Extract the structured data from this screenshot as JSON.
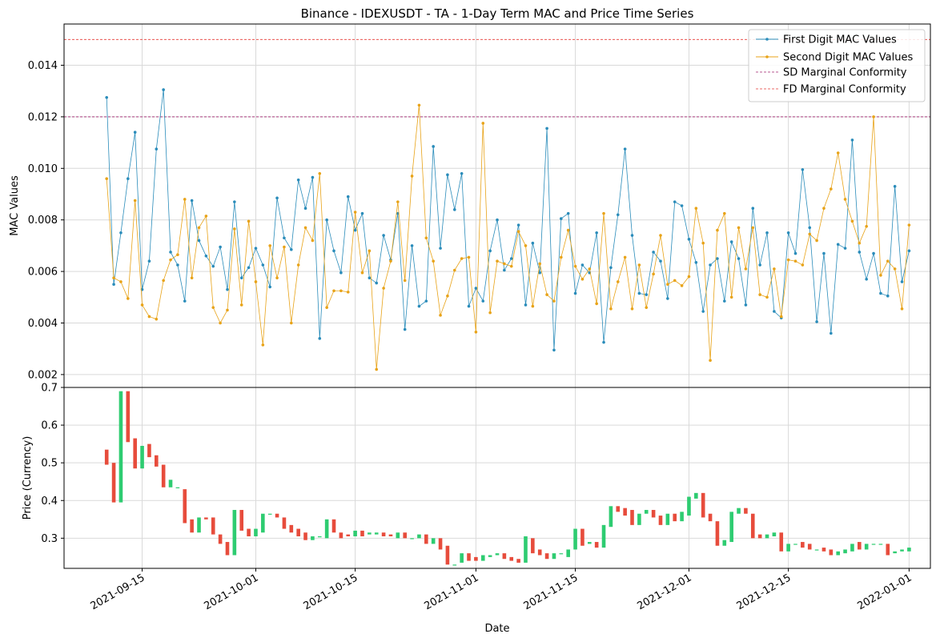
{
  "chart_data": [
    {
      "type": "line",
      "title": "Binance - IDEXUSDT - TA - 1-Day Term MAC and Price Time Series",
      "xlabel": "",
      "ylabel": "MAC Values",
      "x_start": "2021-09-10",
      "x_step_days": 1,
      "xlim": [
        "2021-09-04",
        "2022-01-04"
      ],
      "ylim": [
        0.0015,
        0.0156
      ],
      "yticks": [
        "0.002",
        "0.004",
        "0.006",
        "0.008",
        "0.010",
        "0.012",
        "0.014"
      ],
      "grid": true,
      "legend_position": "top-right",
      "series": [
        {
          "name": "First Digit MAC Values",
          "color": "#2a8cba",
          "values": [
            0.01275,
            0.0055,
            0.0075,
            0.0096,
            0.0114,
            0.0053,
            0.0064,
            0.01075,
            0.01305,
            0.00675,
            0.00625,
            0.00485,
            0.00875,
            0.0072,
            0.0066,
            0.0062,
            0.00695,
            0.0053,
            0.0087,
            0.00575,
            0.00615,
            0.0069,
            0.00625,
            0.0054,
            0.00885,
            0.0073,
            0.00685,
            0.00955,
            0.00845,
            0.00965,
            0.0034,
            0.008,
            0.0068,
            0.00595,
            0.0089,
            0.0076,
            0.00825,
            0.00575,
            0.00555,
            0.0074,
            0.00645,
            0.00825,
            0.00375,
            0.007,
            0.00465,
            0.00485,
            0.01085,
            0.0069,
            0.00975,
            0.0084,
            0.0098,
            0.00465,
            0.00535,
            0.00485,
            0.0068,
            0.008,
            0.00605,
            0.0065,
            0.0078,
            0.0047,
            0.0071,
            0.00595,
            0.01155,
            0.00295,
            0.00805,
            0.00825,
            0.00515,
            0.00625,
            0.00595,
            0.0075,
            0.00325,
            0.00615,
            0.0082,
            0.01075,
            0.0074,
            0.00515,
            0.0051,
            0.00675,
            0.0064,
            0.00495,
            0.0087,
            0.00855,
            0.00725,
            0.00635,
            0.00445,
            0.00625,
            0.0065,
            0.00485,
            0.00715,
            0.0065,
            0.0047,
            0.00845,
            0.00625,
            0.0075,
            0.00445,
            0.0042,
            0.0075,
            0.0067,
            0.00995,
            0.0077,
            0.00405,
            0.0067,
            0.0036,
            0.00705,
            0.0069,
            0.0111,
            0.00675,
            0.0057,
            0.0067,
            0.00515,
            0.00505,
            0.0093,
            0.0056,
            0.0068
          ]
        },
        {
          "name": "Second Digit MAC Values",
          "color": "#e8a318",
          "values": [
            0.0096,
            0.00575,
            0.0056,
            0.00495,
            0.00875,
            0.0047,
            0.00425,
            0.00415,
            0.00565,
            0.00645,
            0.00665,
            0.0088,
            0.00575,
            0.0077,
            0.00815,
            0.0046,
            0.004,
            0.0045,
            0.00765,
            0.0047,
            0.00795,
            0.0056,
            0.00315,
            0.007,
            0.00575,
            0.00695,
            0.004,
            0.00625,
            0.0077,
            0.0072,
            0.0098,
            0.0046,
            0.00525,
            0.00525,
            0.0052,
            0.0083,
            0.00595,
            0.0068,
            0.0022,
            0.00535,
            0.0064,
            0.0087,
            0.00565,
            0.0097,
            0.01245,
            0.0073,
            0.0064,
            0.0043,
            0.00505,
            0.00605,
            0.0065,
            0.00655,
            0.00365,
            0.01175,
            0.0044,
            0.0064,
            0.0063,
            0.0062,
            0.00755,
            0.007,
            0.00465,
            0.0063,
            0.0051,
            0.00485,
            0.00655,
            0.0076,
            0.0062,
            0.0057,
            0.0061,
            0.00475,
            0.00825,
            0.00455,
            0.0056,
            0.00655,
            0.00455,
            0.00625,
            0.0046,
            0.0059,
            0.0074,
            0.0055,
            0.00565,
            0.00545,
            0.0058,
            0.00845,
            0.0071,
            0.00255,
            0.0076,
            0.00825,
            0.005,
            0.0077,
            0.0061,
            0.0077,
            0.0051,
            0.005,
            0.0061,
            0.00425,
            0.00645,
            0.0064,
            0.00625,
            0.00745,
            0.0072,
            0.00845,
            0.0092,
            0.0106,
            0.0088,
            0.00795,
            0.0071,
            0.00775,
            0.012,
            0.00585,
            0.0064,
            0.0061,
            0.00455,
            0.0078
          ]
        }
      ],
      "reference_lines": [
        {
          "name": "SD Marginal Conformity",
          "y": 0.012,
          "color": "#a0206e",
          "style": "dashed"
        },
        {
          "name": "FD Marginal Conformity",
          "y": 0.015,
          "color": "#e53935",
          "style": "dashed"
        }
      ]
    },
    {
      "type": "candlestick",
      "xlabel": "Date",
      "ylabel": "Price (Currency)",
      "ylim": [
        0.22,
        0.7
      ],
      "yticks": [
        "0.3",
        "0.4",
        "0.5",
        "0.6",
        "0.7"
      ],
      "xticks": [
        "2021-09-15",
        "2021-10-01",
        "2021-10-15",
        "2021-11-01",
        "2021-11-15",
        "2021-12-01",
        "2021-12-15",
        "2022-01-01"
      ],
      "grid": true,
      "up_color": "#2ecc71",
      "down_color": "#e74c3c",
      "x_start": "2021-09-10",
      "x_step_days": 1,
      "candles": [
        [
          0.535,
          0.495
        ],
        [
          0.5,
          0.395
        ],
        [
          0.395,
          0.69
        ],
        [
          0.69,
          0.555
        ],
        [
          0.565,
          0.485
        ],
        [
          0.485,
          0.545
        ],
        [
          0.55,
          0.515
        ],
        [
          0.52,
          0.49
        ],
        [
          0.495,
          0.435
        ],
        [
          0.435,
          0.455
        ],
        [
          0.435,
          0.435
        ],
        [
          0.43,
          0.34
        ],
        [
          0.35,
          0.315
        ],
        [
          0.315,
          0.355
        ],
        [
          0.355,
          0.35
        ],
        [
          0.355,
          0.31
        ],
        [
          0.31,
          0.285
        ],
        [
          0.29,
          0.255
        ],
        [
          0.255,
          0.375
        ],
        [
          0.375,
          0.32
        ],
        [
          0.325,
          0.305
        ],
        [
          0.305,
          0.325
        ],
        [
          0.315,
          0.365
        ],
        [
          0.365,
          0.365
        ],
        [
          0.365,
          0.355
        ],
        [
          0.355,
          0.325
        ],
        [
          0.335,
          0.315
        ],
        [
          0.325,
          0.305
        ],
        [
          0.315,
          0.295
        ],
        [
          0.295,
          0.305
        ],
        [
          0.305,
          0.305
        ],
        [
          0.3,
          0.35
        ],
        [
          0.35,
          0.315
        ],
        [
          0.315,
          0.3
        ],
        [
          0.31,
          0.305
        ],
        [
          0.305,
          0.32
        ],
        [
          0.32,
          0.305
        ],
        [
          0.31,
          0.315
        ],
        [
          0.31,
          0.315
        ],
        [
          0.315,
          0.305
        ],
        [
          0.31,
          0.305
        ],
        [
          0.3,
          0.315
        ],
        [
          0.315,
          0.3
        ],
        [
          0.3,
          0.3
        ],
        [
          0.3,
          0.31
        ],
        [
          0.31,
          0.285
        ],
        [
          0.285,
          0.3
        ],
        [
          0.3,
          0.27
        ],
        [
          0.28,
          0.23
        ],
        [
          0.23,
          0.23
        ],
        [
          0.235,
          0.26
        ],
        [
          0.26,
          0.24
        ],
        [
          0.25,
          0.24
        ],
        [
          0.24,
          0.255
        ],
        [
          0.25,
          0.255
        ],
        [
          0.255,
          0.26
        ],
        [
          0.26,
          0.245
        ],
        [
          0.25,
          0.24
        ],
        [
          0.245,
          0.235
        ],
        [
          0.235,
          0.305
        ],
        [
          0.3,
          0.26
        ],
        [
          0.27,
          0.255
        ],
        [
          0.26,
          0.245
        ],
        [
          0.245,
          0.26
        ],
        [
          0.26,
          0.26
        ],
        [
          0.25,
          0.27
        ],
        [
          0.27,
          0.325
        ],
        [
          0.325,
          0.28
        ],
        [
          0.285,
          0.29
        ],
        [
          0.29,
          0.275
        ],
        [
          0.275,
          0.335
        ],
        [
          0.33,
          0.385
        ],
        [
          0.385,
          0.37
        ],
        [
          0.38,
          0.36
        ],
        [
          0.375,
          0.335
        ],
        [
          0.335,
          0.365
        ],
        [
          0.365,
          0.375
        ],
        [
          0.375,
          0.355
        ],
        [
          0.36,
          0.335
        ],
        [
          0.335,
          0.365
        ],
        [
          0.365,
          0.345
        ],
        [
          0.345,
          0.37
        ],
        [
          0.36,
          0.41
        ],
        [
          0.405,
          0.42
        ],
        [
          0.42,
          0.355
        ],
        [
          0.365,
          0.345
        ],
        [
          0.345,
          0.28
        ],
        [
          0.28,
          0.295
        ],
        [
          0.29,
          0.37
        ],
        [
          0.365,
          0.38
        ],
        [
          0.38,
          0.365
        ],
        [
          0.365,
          0.3
        ],
        [
          0.31,
          0.3
        ],
        [
          0.3,
          0.31
        ],
        [
          0.305,
          0.315
        ],
        [
          0.315,
          0.265
        ],
        [
          0.265,
          0.285
        ],
        [
          0.285,
          0.285
        ],
        [
          0.29,
          0.275
        ],
        [
          0.285,
          0.27
        ],
        [
          0.27,
          0.27
        ],
        [
          0.275,
          0.265
        ],
        [
          0.27,
          0.255
        ],
        [
          0.255,
          0.265
        ],
        [
          0.26,
          0.27
        ],
        [
          0.265,
          0.285
        ],
        [
          0.29,
          0.27
        ],
        [
          0.27,
          0.285
        ],
        [
          0.285,
          0.285
        ],
        [
          0.285,
          0.285
        ],
        [
          0.285,
          0.255
        ],
        [
          0.26,
          0.265
        ],
        [
          0.265,
          0.27
        ],
        [
          0.265,
          0.275
        ]
      ]
    }
  ]
}
